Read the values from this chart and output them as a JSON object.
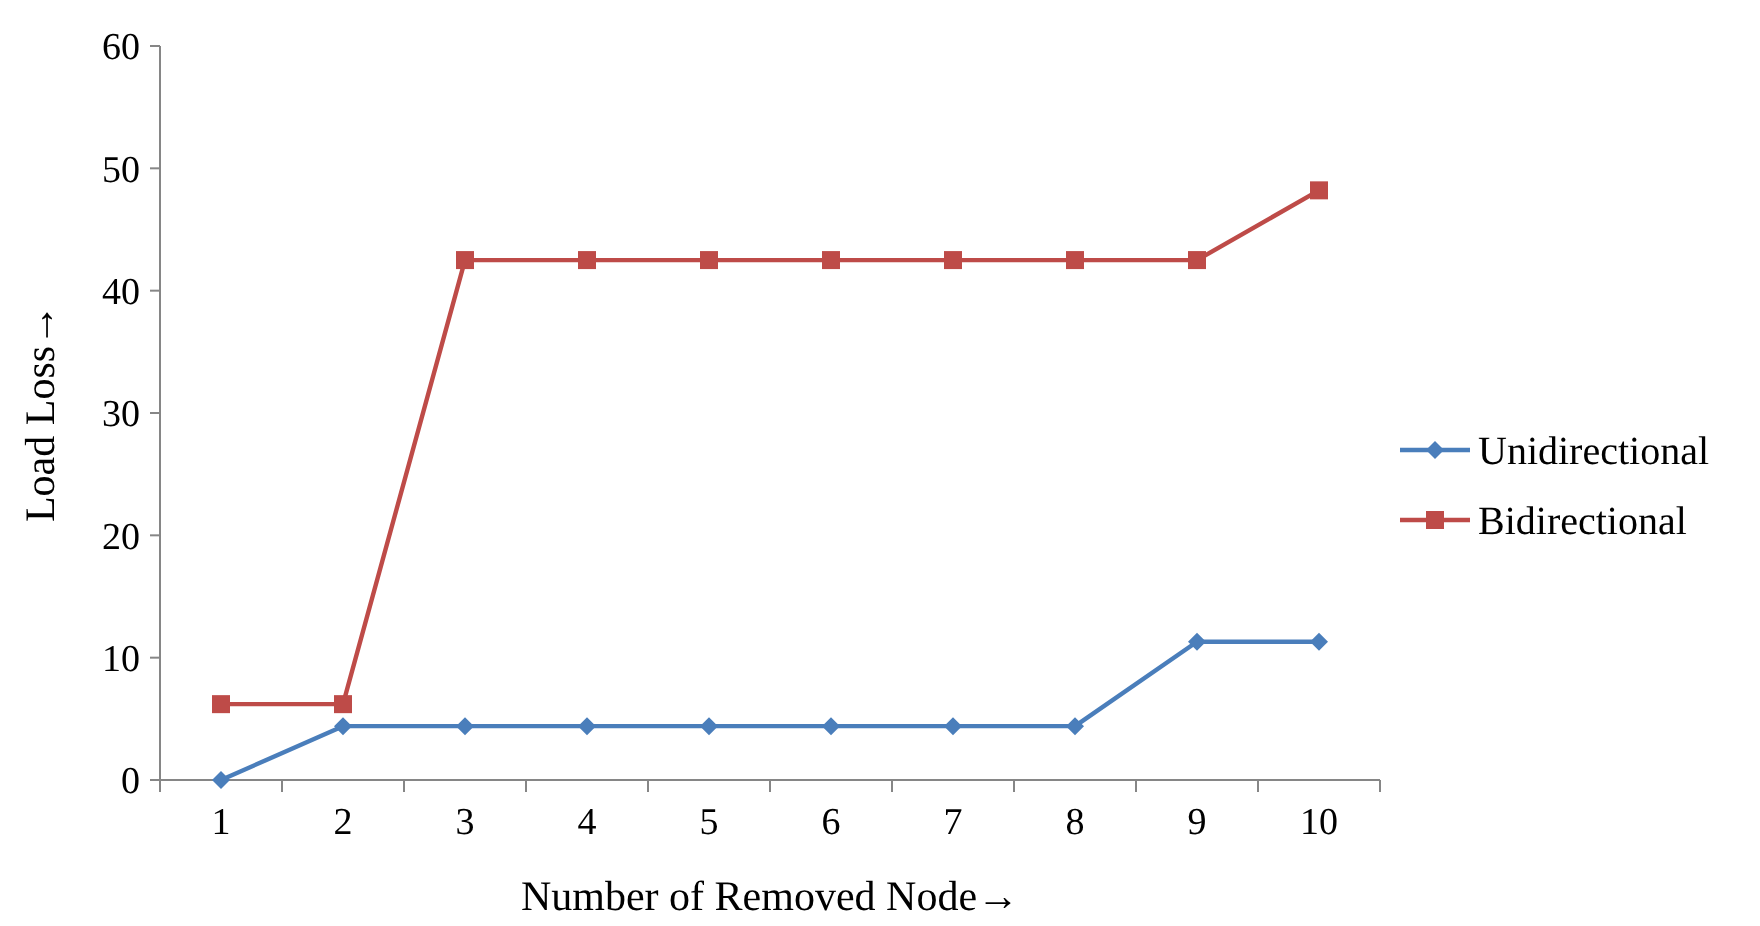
{
  "chart_data": {
    "type": "line",
    "xlabel": "Number of Removed Node→",
    "ylabel": "Load Loss→",
    "categories": [
      "1",
      "2",
      "3",
      "4",
      "5",
      "6",
      "7",
      "8",
      "9",
      "10"
    ],
    "ylim": [
      0,
      60
    ],
    "yticks": [
      0,
      10,
      20,
      30,
      40,
      50,
      60
    ],
    "grid": false,
    "legend": "right",
    "series": [
      {
        "name": "Unidirectional",
        "color": "#4a7ebb",
        "marker": "diamond",
        "values": [
          0,
          4.4,
          4.4,
          4.4,
          4.4,
          4.4,
          4.4,
          4.4,
          11.3,
          11.3
        ]
      },
      {
        "name": "Bidirectional",
        "color": "#be4b48",
        "marker": "square",
        "values": [
          6.2,
          6.2,
          42.5,
          42.5,
          42.5,
          42.5,
          42.5,
          42.5,
          42.5,
          48.2
        ]
      }
    ]
  }
}
